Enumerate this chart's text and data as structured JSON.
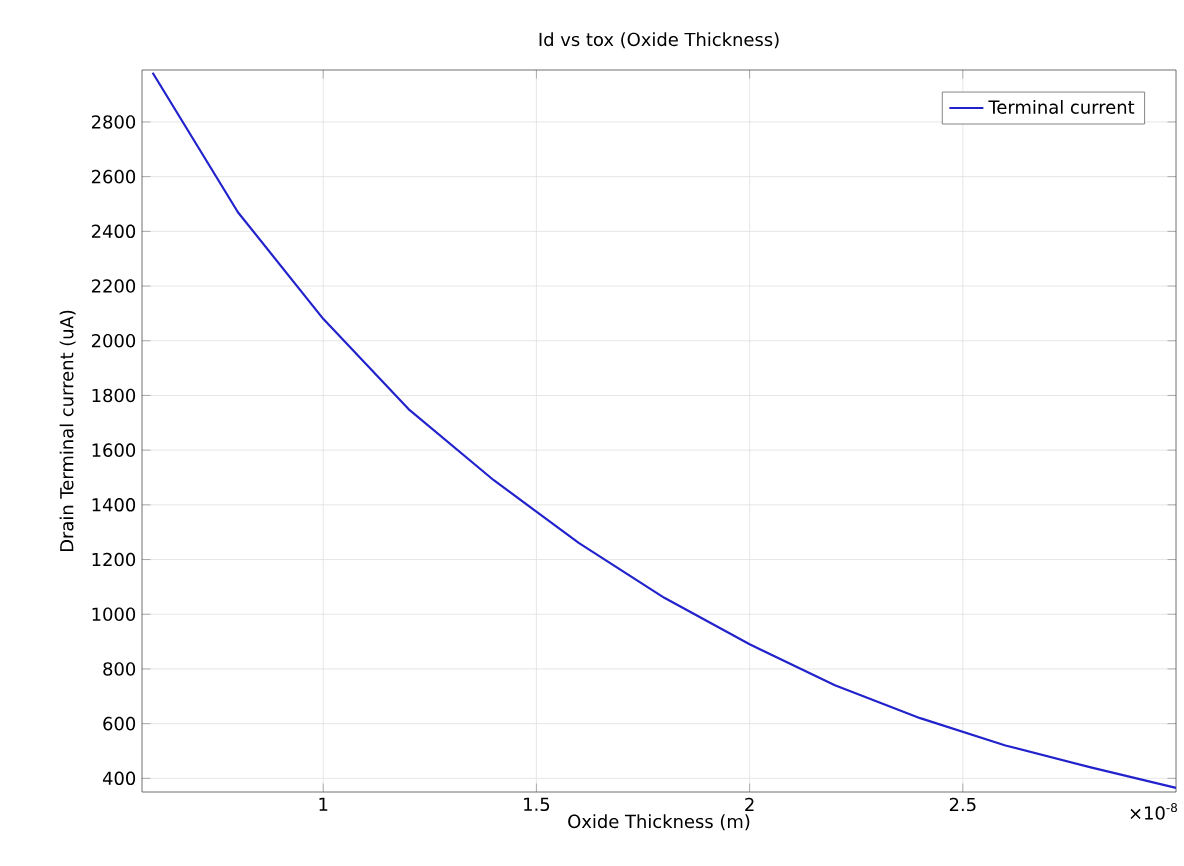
{
  "chart_data": {
    "type": "line",
    "title": "Id vs tox (Oxide Thickness)",
    "xlabel": "Oxide Thickness (m)",
    "ylabel": "Drain Terminal current (uA)",
    "x": [
      0.6,
      0.8,
      1.0,
      1.2,
      1.4,
      1.6,
      1.8,
      2.0,
      2.2,
      2.4,
      2.6,
      2.8,
      3.0
    ],
    "series": [
      {
        "name": "Terminal current",
        "color": "#2222cc",
        "values": [
          2980,
          2470,
          2080,
          1750,
          1490,
          1260,
          1060,
          890,
          740,
          620,
          520,
          440,
          365
        ]
      }
    ],
    "xlim": [
      0.575,
      3.0
    ],
    "ylim": [
      350,
      2990
    ],
    "xticks": [
      1,
      1.5,
      2,
      2.5
    ],
    "yticks": [
      400,
      600,
      800,
      1000,
      1200,
      1400,
      1600,
      1800,
      2000,
      2200,
      2400,
      2600,
      2800
    ],
    "annotations": [
      "×10$^{-8}$"
    ],
    "grid": true,
    "legend": "top right",
    "marker": "none",
    "line_style": "solid"
  }
}
